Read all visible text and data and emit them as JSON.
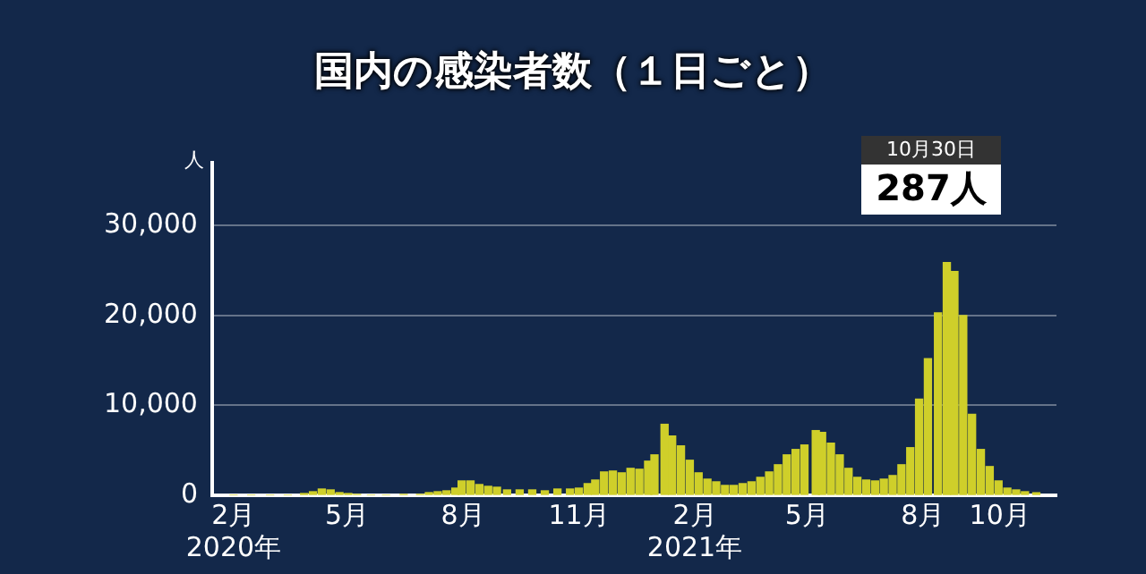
{
  "chart_data": {
    "type": "bar",
    "title": "国内の感染者数（１日ごと）",
    "ylabel": "人",
    "x": [
      "2020-02-01",
      "2020-02-15",
      "2020-03-01",
      "2020-03-15",
      "2020-03-28",
      "2020-04-04",
      "2020-04-11",
      "2020-04-18",
      "2020-04-25",
      "2020-05-02",
      "2020-05-09",
      "2020-05-20",
      "2020-06-01",
      "2020-06-15",
      "2020-06-28",
      "2020-07-05",
      "2020-07-12",
      "2020-07-19",
      "2020-07-26",
      "2020-07-31",
      "2020-08-07",
      "2020-08-14",
      "2020-08-21",
      "2020-08-28",
      "2020-09-05",
      "2020-09-15",
      "2020-09-25",
      "2020-10-05",
      "2020-10-15",
      "2020-10-25",
      "2020-11-01",
      "2020-11-08",
      "2020-11-14",
      "2020-11-21",
      "2020-11-28",
      "2020-12-05",
      "2020-12-12",
      "2020-12-19",
      "2020-12-26",
      "2020-12-31",
      "2021-01-08",
      "2021-01-14",
      "2021-01-21",
      "2021-01-28",
      "2021-02-04",
      "2021-02-11",
      "2021-02-18",
      "2021-02-25",
      "2021-03-04",
      "2021-03-11",
      "2021-03-18",
      "2021-03-25",
      "2021-04-01",
      "2021-04-08",
      "2021-04-15",
      "2021-04-22",
      "2021-04-29",
      "2021-05-08",
      "2021-05-13",
      "2021-05-20",
      "2021-05-27",
      "2021-06-03",
      "2021-06-10",
      "2021-06-17",
      "2021-06-24",
      "2021-07-01",
      "2021-07-08",
      "2021-07-15",
      "2021-07-22",
      "2021-07-29",
      "2021-08-05",
      "2021-08-13",
      "2021-08-20",
      "2021-08-26",
      "2021-09-02",
      "2021-09-09",
      "2021-09-16",
      "2021-09-23",
      "2021-09-30",
      "2021-10-07",
      "2021-10-14",
      "2021-10-21",
      "2021-10-30"
    ],
    "values": [
      0,
      0,
      0,
      0,
      200,
      400,
      700,
      600,
      300,
      200,
      100,
      0,
      0,
      100,
      100,
      300,
      400,
      500,
      800,
      1600,
      1600,
      1200,
      1000,
      900,
      600,
      600,
      600,
      500,
      700,
      700,
      800,
      1300,
      1700,
      2600,
      2700,
      2500,
      3000,
      2900,
      3800,
      4500,
      7900,
      6600,
      5500,
      3900,
      2500,
      1800,
      1500,
      1100,
      1100,
      1300,
      1500,
      2000,
      2600,
      3400,
      4500,
      5100,
      5600,
      7200,
      7000,
      5800,
      4500,
      3000,
      2000,
      1700,
      1600,
      1800,
      2200,
      3400,
      5300,
      10700,
      15200,
      20300,
      25900,
      24900,
      20000,
      9000,
      5100,
      3200,
      1600,
      800,
      600,
      400,
      287
    ],
    "color": "#cfcf2a",
    "xlim": [
      "2020-01-15",
      "2021-11-15"
    ],
    "xticks": [
      {
        "value": "2020-02-01",
        "label": "2月\n2020年"
      },
      {
        "value": "2020-05-01",
        "label": "5月"
      },
      {
        "value": "2020-08-01",
        "label": "8月"
      },
      {
        "value": "2020-11-01",
        "label": "11月"
      },
      {
        "value": "2021-02-01",
        "label": "2月\n2021年"
      },
      {
        "value": "2021-05-01",
        "label": "5月"
      },
      {
        "value": "2021-08-01",
        "label": "8月"
      },
      {
        "value": "2021-10-01",
        "label": "10月"
      }
    ],
    "ylim": [
      0,
      37000
    ],
    "yticks": [
      0,
      {
        "value": 10000,
        "label": "10,000"
      },
      {
        "value": 20000,
        "label": "20,000"
      },
      {
        "value": 30000,
        "label": "30,000"
      }
    ],
    "grid": "y",
    "legend": false,
    "annotations": [
      "10月30日",
      "287人"
    ]
  }
}
